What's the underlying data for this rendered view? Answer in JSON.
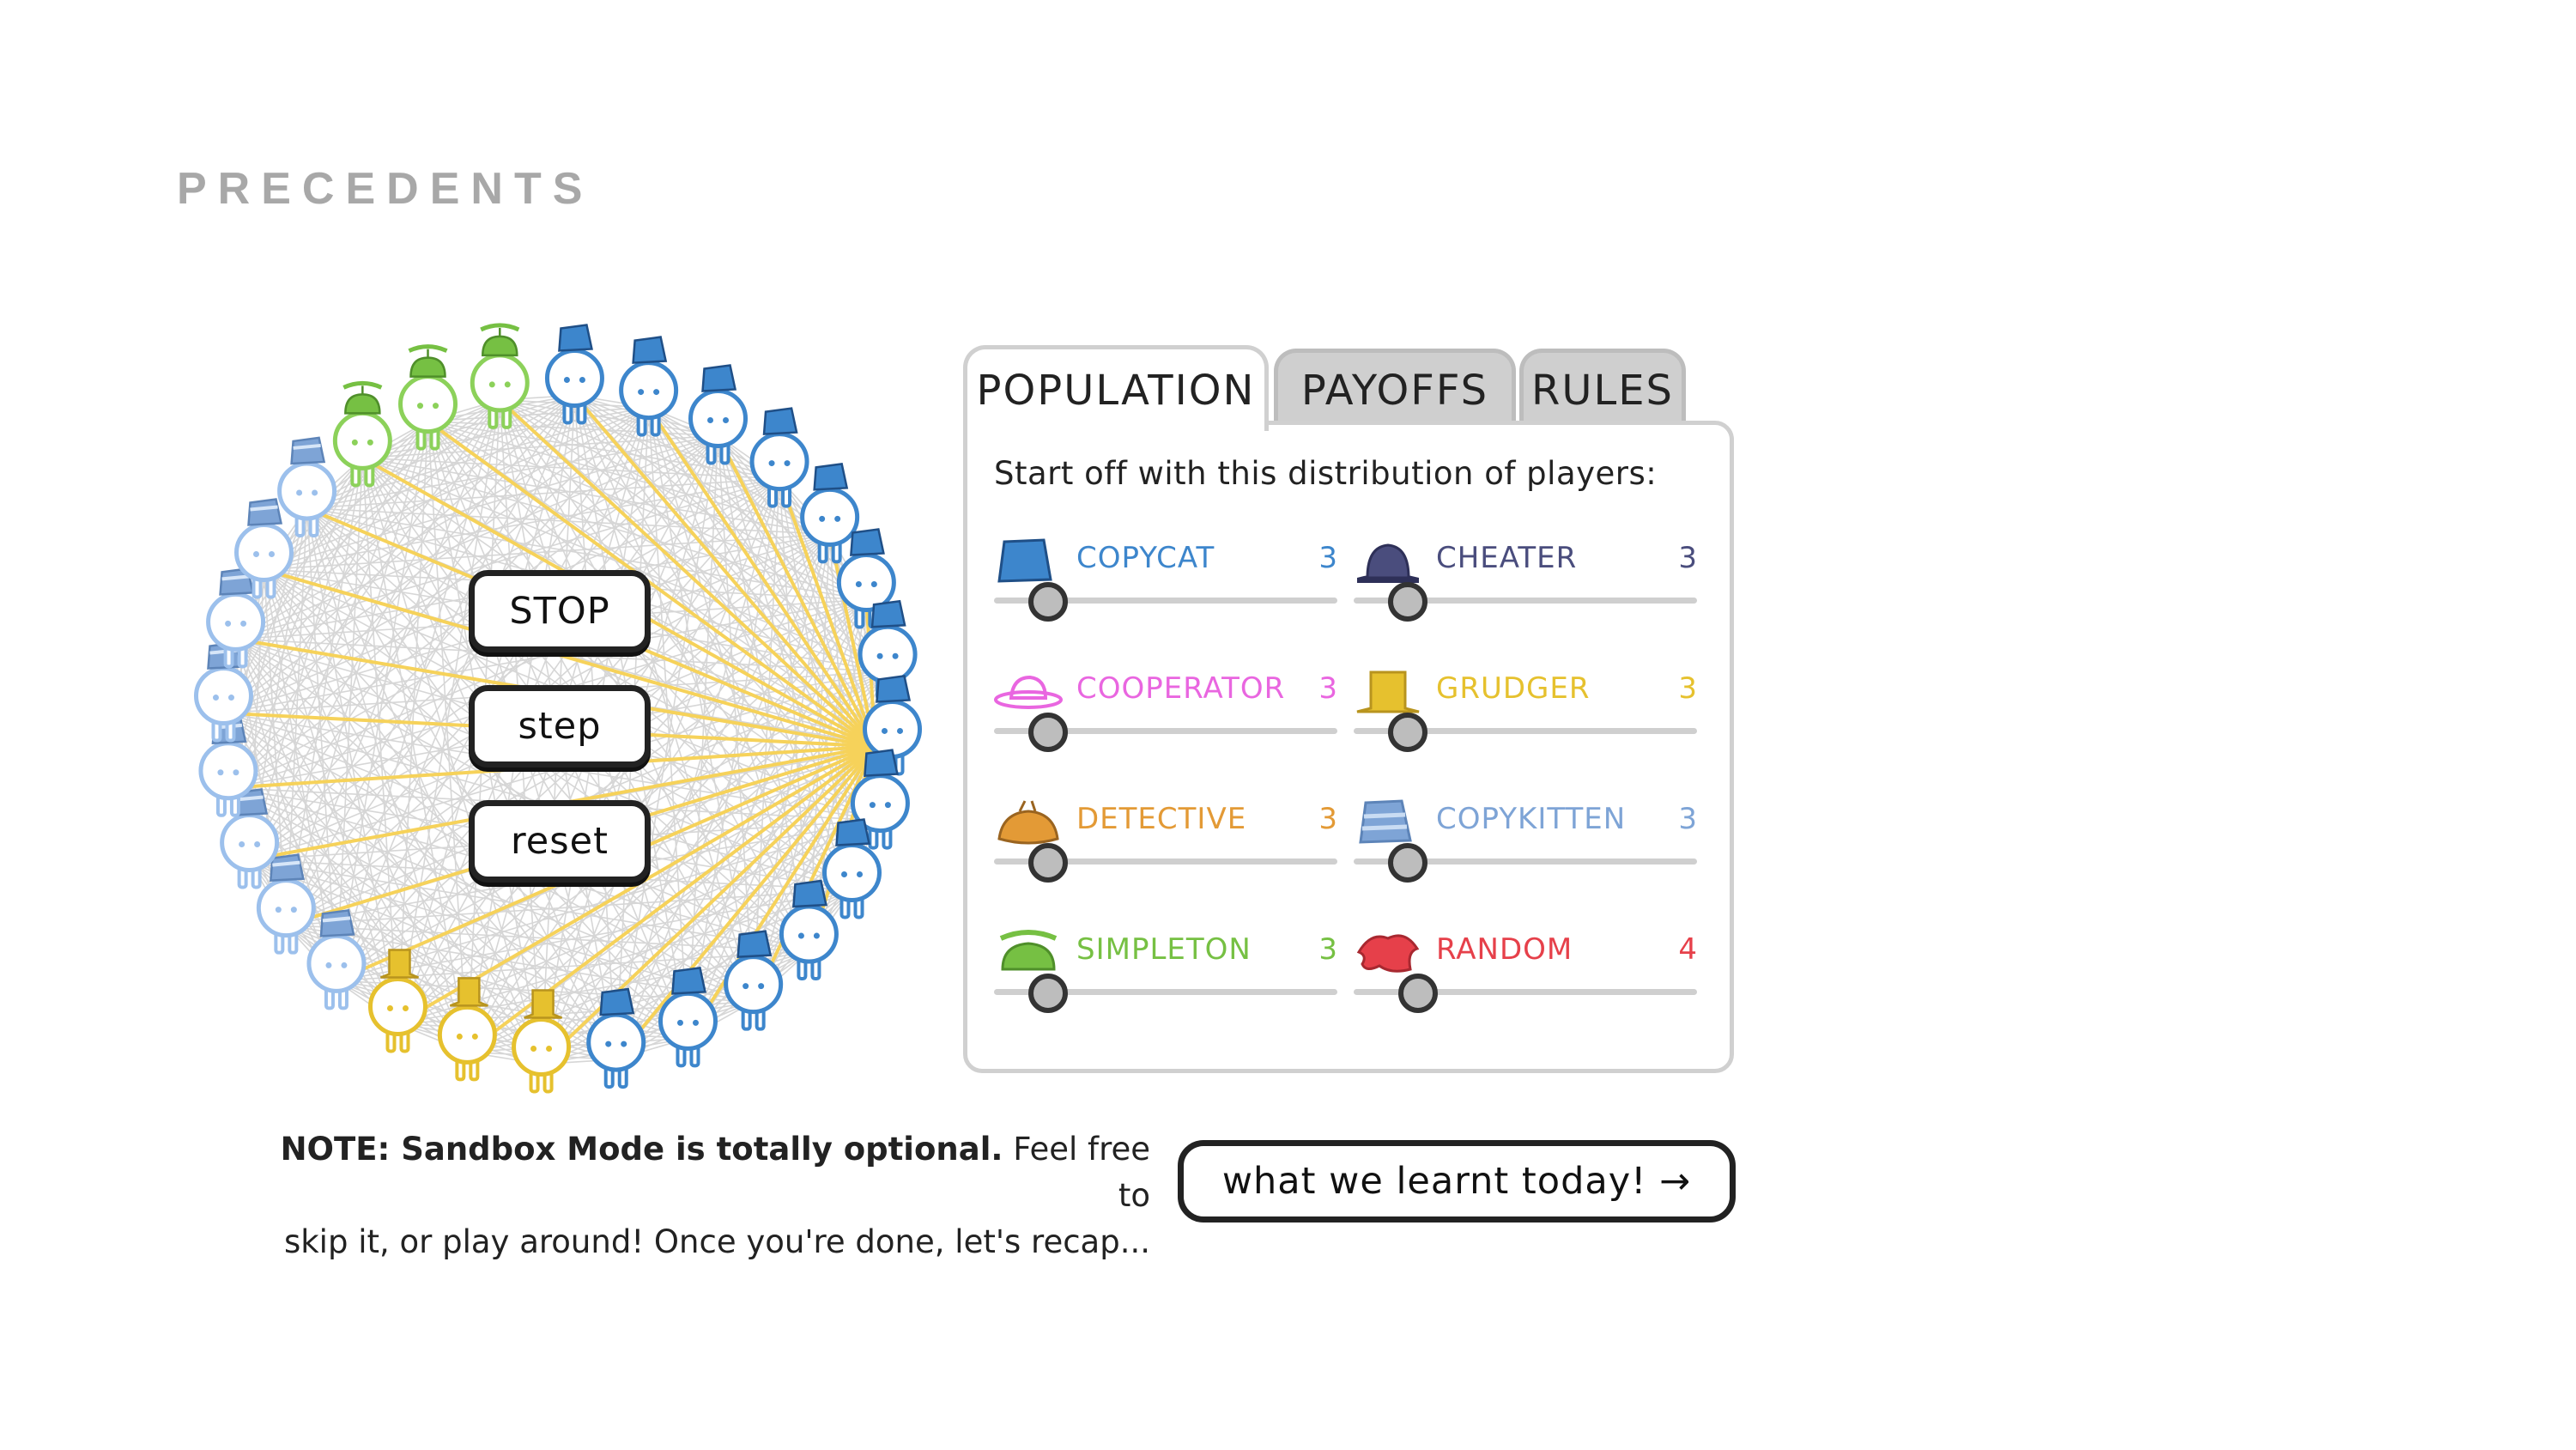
{
  "heading": "PRECEDENTS",
  "controls": {
    "stop": "STOP",
    "step": "step",
    "reset": "reset"
  },
  "tabs": {
    "population": "POPULATION",
    "payoffs": "PAYOFFS",
    "rules": "RULES"
  },
  "panel": {
    "intro": "Start off with this distribution of players:",
    "strategies": [
      {
        "name": "COPYCAT",
        "count": "3",
        "color": "#3d86cc",
        "hat": "copycat-hat-icon",
        "slider": 0.1
      },
      {
        "name": "CHEATER",
        "count": "3",
        "color": "#4a4d7d",
        "hat": "cheater-hat-icon",
        "slider": 0.1
      },
      {
        "name": "COOPERATOR",
        "count": "3",
        "color": "#e966e0",
        "hat": "cooperator-hat-icon",
        "slider": 0.1
      },
      {
        "name": "GRUDGER",
        "count": "3",
        "color": "#e6c12e",
        "hat": "grudger-hat-icon",
        "slider": 0.1
      },
      {
        "name": "DETECTIVE",
        "count": "3",
        "color": "#e39a36",
        "hat": "detective-hat-icon",
        "slider": 0.1
      },
      {
        "name": "COPYKITTEN",
        "count": "3",
        "color": "#7ea4d6",
        "hat": "copykitten-hat-icon",
        "slider": 0.1
      },
      {
        "name": "SIMPLETON",
        "count": "3",
        "color": "#76c043",
        "hat": "simpleton-hat-icon",
        "slider": 0.1
      },
      {
        "name": "RANDOM",
        "count": "4",
        "color": "#e6404a",
        "hat": "random-hat-icon",
        "slider": 0.13
      }
    ]
  },
  "note": {
    "bold": "NOTE: Sandbox Mode is totally optional.",
    "line1_rest": " Feel free to",
    "line2": "skip it, or play around! Once you're done, let's recap..."
  },
  "recap_button": "what we learnt today! →",
  "network": {
    "players": [
      "simpleton",
      "copycat",
      "copycat",
      "copycat",
      "copycat",
      "copycat",
      "copycat",
      "copycat",
      "copycat",
      "copycat",
      "copycat",
      "copycat",
      "copycat",
      "copycat",
      "copycat",
      "grudger",
      "grudger",
      "grudger",
      "copykitten",
      "copykitten",
      "copykitten",
      "copykitten",
      "copykitten",
      "copykitten",
      "copykitten",
      "copykitten",
      "simpleton",
      "simpleton"
    ],
    "colors": {
      "copycat": {
        "body": "#3d86cc",
        "hat": "#3d86cc"
      },
      "grudger": {
        "body": "#e6c12e",
        "hat": "#e6c12e"
      },
      "copykitten": {
        "body": "#9cc0ec",
        "hat": "#7ea4d6"
      },
      "simpleton": {
        "body": "#8cd15a",
        "hat": "#76c043"
      }
    },
    "focus_player": 8
  }
}
